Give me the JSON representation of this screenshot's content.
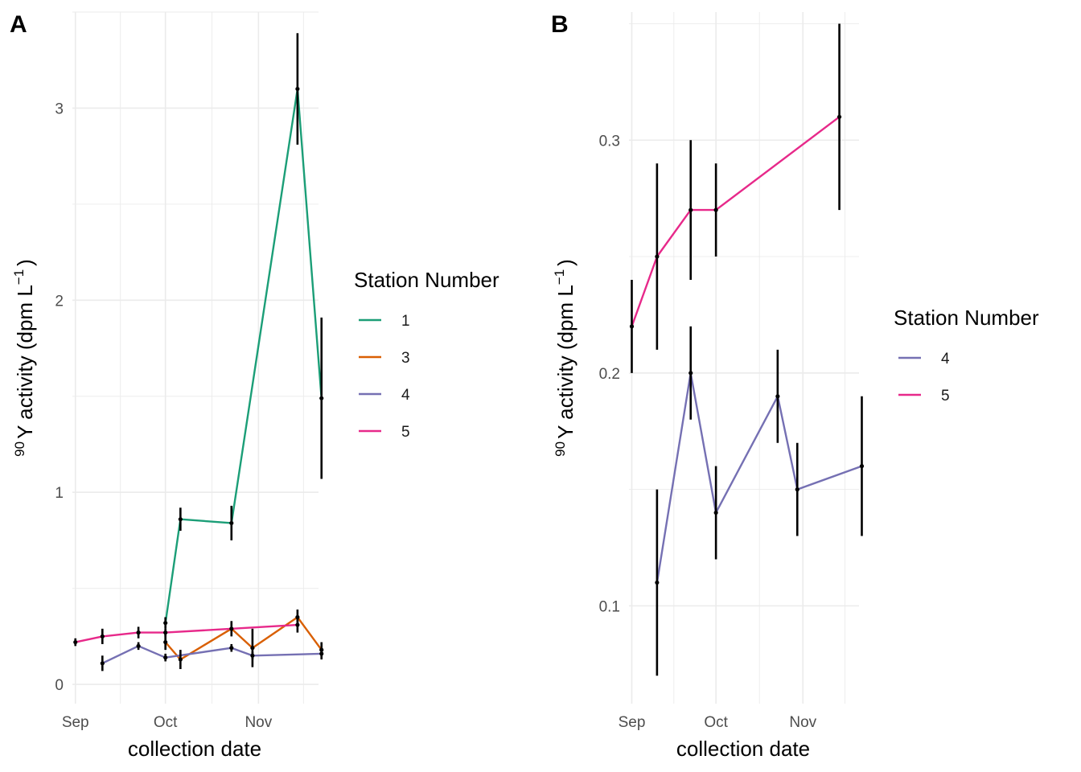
{
  "chart_data": [
    {
      "type": "line",
      "panel_label": "A",
      "xlabel": "collection date",
      "ylabel_superscript": "90",
      "ylabel_main": "Y activity (dpm L",
      "ylabel_unit_exp": "−1",
      "ylabel_close": ")",
      "x_tick_labels": [
        "Sep",
        "Oct",
        "Nov"
      ],
      "x_tick_dates": [
        "2019-09-01",
        "2019-10-01",
        "2019-11-01"
      ],
      "xlim": [
        "2019-08-31",
        "2019-11-21"
      ],
      "y_ticks": [
        0,
        1,
        2,
        3
      ],
      "y_tick_labels": [
        "0",
        "1",
        "2",
        "3"
      ],
      "ylim": [
        -0.1,
        3.5
      ],
      "grid": true,
      "legend_title": "Station Number",
      "legend_position": "right",
      "series": [
        {
          "name": "1",
          "color": "#1b9e77",
          "points": [
            {
              "x": "2019-10-01",
              "y": 0.32,
              "err": 0.03
            },
            {
              "x": "2019-10-06",
              "y": 0.86,
              "err": 0.06
            },
            {
              "x": "2019-10-23",
              "y": 0.84,
              "err": 0.09
            },
            {
              "x": "2019-11-14",
              "y": 3.1,
              "err": 0.29
            },
            {
              "x": "2019-11-22",
              "y": 1.49,
              "err": 0.42
            }
          ]
        },
        {
          "name": "3",
          "color": "#d95f02",
          "points": [
            {
              "x": "2019-10-01",
              "y": 0.22,
              "err": 0.04
            },
            {
              "x": "2019-10-06",
              "y": 0.13,
              "err": 0.05
            },
            {
              "x": "2019-10-23",
              "y": 0.29,
              "err": 0.04
            },
            {
              "x": "2019-10-30",
              "y": 0.19,
              "err": 0.1
            },
            {
              "x": "2019-11-14",
              "y": 0.35,
              "err": 0.04
            },
            {
              "x": "2019-11-22",
              "y": 0.18,
              "err": 0.04
            }
          ]
        },
        {
          "name": "4",
          "color": "#7570b3",
          "points": [
            {
              "x": "2019-09-10",
              "y": 0.11,
              "err": 0.04
            },
            {
              "x": "2019-09-22",
              "y": 0.2,
              "err": 0.02
            },
            {
              "x": "2019-10-01",
              "y": 0.14,
              "err": 0.02
            },
            {
              "x": "2019-10-23",
              "y": 0.19,
              "err": 0.02
            },
            {
              "x": "2019-10-30",
              "y": 0.15,
              "err": 0.02
            },
            {
              "x": "2019-11-22",
              "y": 0.16,
              "err": 0.03
            }
          ]
        },
        {
          "name": "5",
          "color": "#e7298a",
          "points": [
            {
              "x": "2019-09-01",
              "y": 0.22,
              "err": 0.02
            },
            {
              "x": "2019-09-10",
              "y": 0.25,
              "err": 0.04
            },
            {
              "x": "2019-09-22",
              "y": 0.27,
              "err": 0.03
            },
            {
              "x": "2019-10-01",
              "y": 0.27,
              "err": 0.02
            },
            {
              "x": "2019-11-14",
              "y": 0.31,
              "err": 0.04
            }
          ]
        }
      ]
    },
    {
      "type": "line",
      "panel_label": "B",
      "xlabel": "collection date",
      "ylabel_superscript": "90",
      "ylabel_main": "Y activity (dpm L",
      "ylabel_unit_exp": "−1",
      "ylabel_close": ")",
      "x_tick_labels": [
        "Sep",
        "Oct",
        "Nov"
      ],
      "x_tick_dates": [
        "2019-09-01",
        "2019-10-01",
        "2019-11-01"
      ],
      "xlim": [
        "2019-08-31",
        "2019-11-21"
      ],
      "y_ticks": [
        0.1,
        0.2,
        0.3
      ],
      "y_tick_labels": [
        "0.1",
        "0.2",
        "0.3"
      ],
      "ylim": [
        0.058,
        0.355
      ],
      "grid": true,
      "legend_title": "Station Number",
      "legend_position": "right",
      "series": [
        {
          "name": "4",
          "color": "#7570b3",
          "points": [
            {
              "x": "2019-09-10",
              "y": 0.11,
              "err": 0.04
            },
            {
              "x": "2019-09-22",
              "y": 0.2,
              "err": 0.02
            },
            {
              "x": "2019-10-01",
              "y": 0.14,
              "err": 0.02
            },
            {
              "x": "2019-10-23",
              "y": 0.19,
              "err": 0.02
            },
            {
              "x": "2019-10-30",
              "y": 0.15,
              "err": 0.02
            },
            {
              "x": "2019-11-22",
              "y": 0.16,
              "err": 0.03
            }
          ]
        },
        {
          "name": "5",
          "color": "#e7298a",
          "points": [
            {
              "x": "2019-09-01",
              "y": 0.22,
              "err": 0.02
            },
            {
              "x": "2019-09-10",
              "y": 0.25,
              "err": 0.04
            },
            {
              "x": "2019-09-22",
              "y": 0.27,
              "err": 0.03
            },
            {
              "x": "2019-10-01",
              "y": 0.27,
              "err": 0.02
            },
            {
              "x": "2019-11-14",
              "y": 0.31,
              "err": 0.04
            }
          ]
        }
      ]
    }
  ]
}
